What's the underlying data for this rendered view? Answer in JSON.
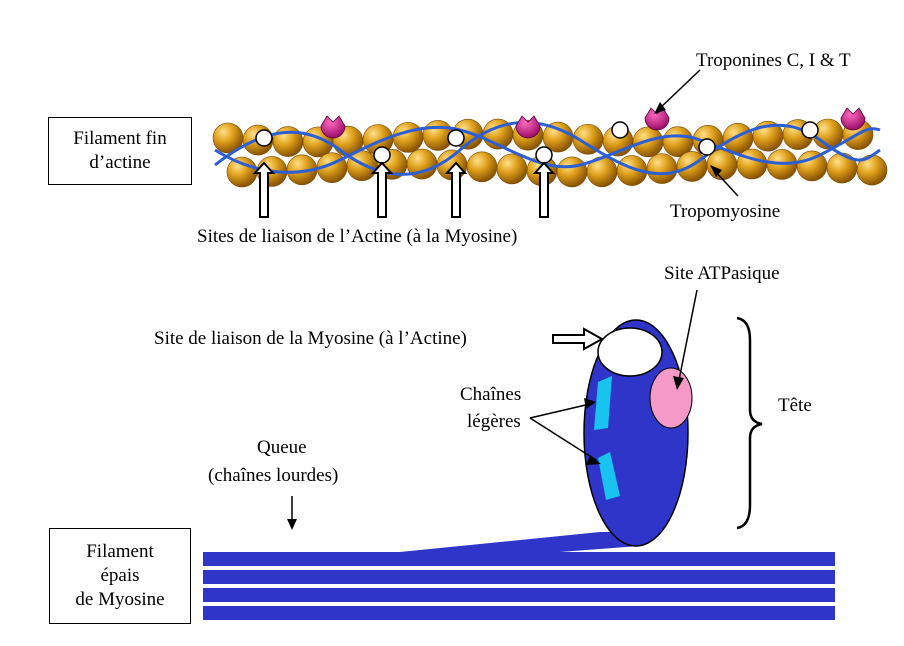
{
  "boxes": {
    "thin_filament": [
      "Filament fin",
      "d’actine"
    ],
    "thick_filament": [
      "Filament",
      "épais",
      "de Myosine"
    ]
  },
  "labels": {
    "troponins": "Troponines C, I & T",
    "actin_binding_sites": "Sites de liaison de l’Actine (à la Myosine)",
    "tropomyosin": "Tropomyosine",
    "atpase_site": "Site ATPasique",
    "myosin_binding_site": "Site de liaison de la Myosine (à l’Actine)",
    "light_chains": [
      "Chaînes",
      "légères"
    ],
    "head": "Tête",
    "tail": [
      "Queue",
      "(chaînes lourdes)"
    ]
  },
  "colors": {
    "actin_bead": "#c98a12",
    "actin_bead_highlight": "#f4c04a",
    "tropomyosin": "#2c5fd6",
    "troponin": "#c8178a",
    "myosin": "#2f35c9",
    "light_chain": "#19c3f0",
    "atpase_site": "#f59ac8"
  }
}
